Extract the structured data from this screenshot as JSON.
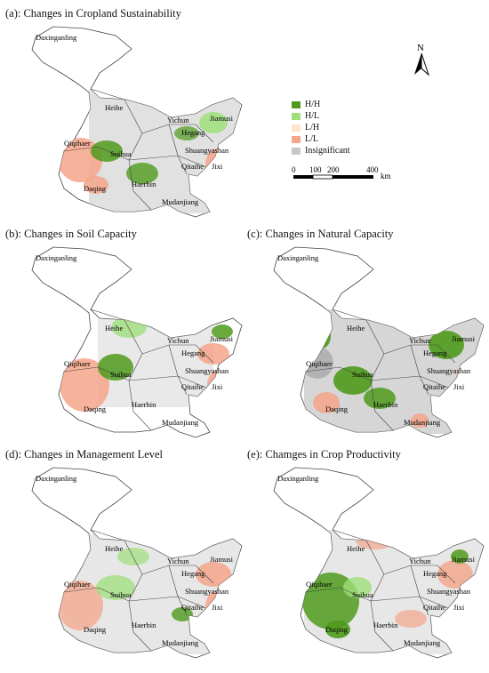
{
  "panels": [
    {
      "title": "(a): Changes in Cropland Sustainability"
    },
    {
      "title": "(b): Changes in Soil Capacity"
    },
    {
      "title": "(c): Changes in Natural Capacity"
    },
    {
      "title": "(d): Changes in Management Level"
    },
    {
      "title": "(e): Chamges in Crop Productivity"
    }
  ],
  "regions": {
    "daxinganling": "Daxinganling",
    "heihe": "Heihe",
    "yichun": "Yichun",
    "hegang": "Hegang",
    "jiamusi": "Jiamusi",
    "qiqihaer": "Qiqihaer",
    "suihua": "Suihua",
    "shuangyashan": "Shuangyashan",
    "qitaihe": "Qitaihe",
    "jixi": "Jixi",
    "daqing": "Daqing",
    "haerbin": "Haerbin",
    "mudanjiang": "Mudanjiang"
  },
  "legend": {
    "items": [
      {
        "label": "H/H",
        "color": "#4f9a1c"
      },
      {
        "label": "H/L",
        "color": "#9fdf7a"
      },
      {
        "label": "L/H",
        "color": "#fbe6c8"
      },
      {
        "label": "L/L",
        "color": "#f4a58a"
      },
      {
        "label": "Insignificant",
        "color": "#c8c8c8"
      }
    ]
  },
  "north_arrow": {
    "label": "N"
  },
  "scale": {
    "ticks": [
      "0",
      "100",
      "200",
      "400"
    ],
    "unit": "km"
  }
}
